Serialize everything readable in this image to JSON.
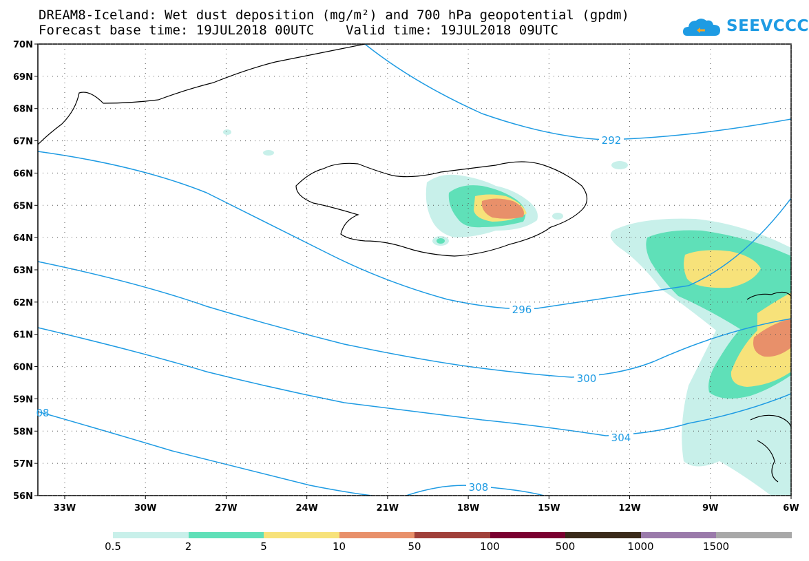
{
  "title_line1": "DREAM8-Iceland: Wet dust deposition (mg/m²) and 700 hPa geopotential (gpdm)",
  "title_line2": "Forecast base time: 19JUL2018 00UTC    Valid time: 19JUL2018 09UTC",
  "logo_text": "SEEVCCC",
  "logo_color": "#1e9be3",
  "lat_labels": [
    "70N",
    "69N",
    "68N",
    "67N",
    "66N",
    "65N",
    "64N",
    "63N",
    "62N",
    "61N",
    "60N",
    "59N",
    "58N",
    "57N",
    "56N"
  ],
  "lon_labels": [
    "33W",
    "30W",
    "27W",
    "24W",
    "21W",
    "18W",
    "15W",
    "12W",
    "9W",
    "6W"
  ],
  "contour_labels": [
    "292",
    "296",
    "300",
    "304",
    "308",
    "08"
  ],
  "contour_color": "#1e9be3",
  "colorbar": {
    "levels": [
      "0.5",
      "2",
      "5",
      "10",
      "50",
      "100",
      "500",
      "1000",
      "1500"
    ],
    "colors": [
      "#c8f0ea",
      "#5fe0b8",
      "#f7e27a",
      "#e8906a",
      "#a0403a",
      "#7a0030",
      "#3a2a1a",
      "#9a7aaa",
      "#a8a8a8"
    ]
  }
}
